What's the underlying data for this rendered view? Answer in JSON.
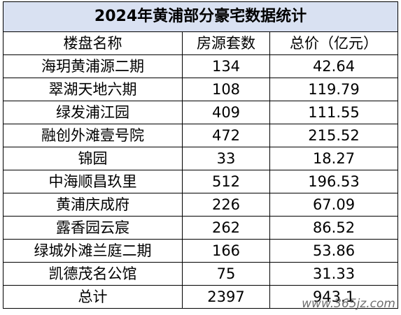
{
  "table": {
    "title": "2024年黄浦部分豪宅数据统计",
    "header": [
      "楼盘名称",
      "房源套数",
      "总价（亿元）"
    ],
    "rows": [
      [
        "海玥黄浦源二期",
        "134",
        "42.64"
      ],
      [
        "翠湖天地六期",
        "108",
        "119.79"
      ],
      [
        "绿发浦江园",
        "409",
        "111.55"
      ],
      [
        "融创外滩壹号院",
        "472",
        "215.52"
      ],
      [
        "锦园",
        "33",
        "18.27"
      ],
      [
        "中海顺昌玖里",
        "512",
        "196.53"
      ],
      [
        "黄浦庆成府",
        "226",
        "67.09"
      ],
      [
        "露香园云宸",
        "262",
        "86.52"
      ],
      [
        "绿城外滩兰庭二期",
        "166",
        "53.86"
      ],
      [
        "凯德茂名公馆",
        "75",
        "31.33"
      ],
      [
        "总计",
        "2397",
        "943.1"
      ]
    ]
  },
  "watermark": "www.365jz.com"
}
